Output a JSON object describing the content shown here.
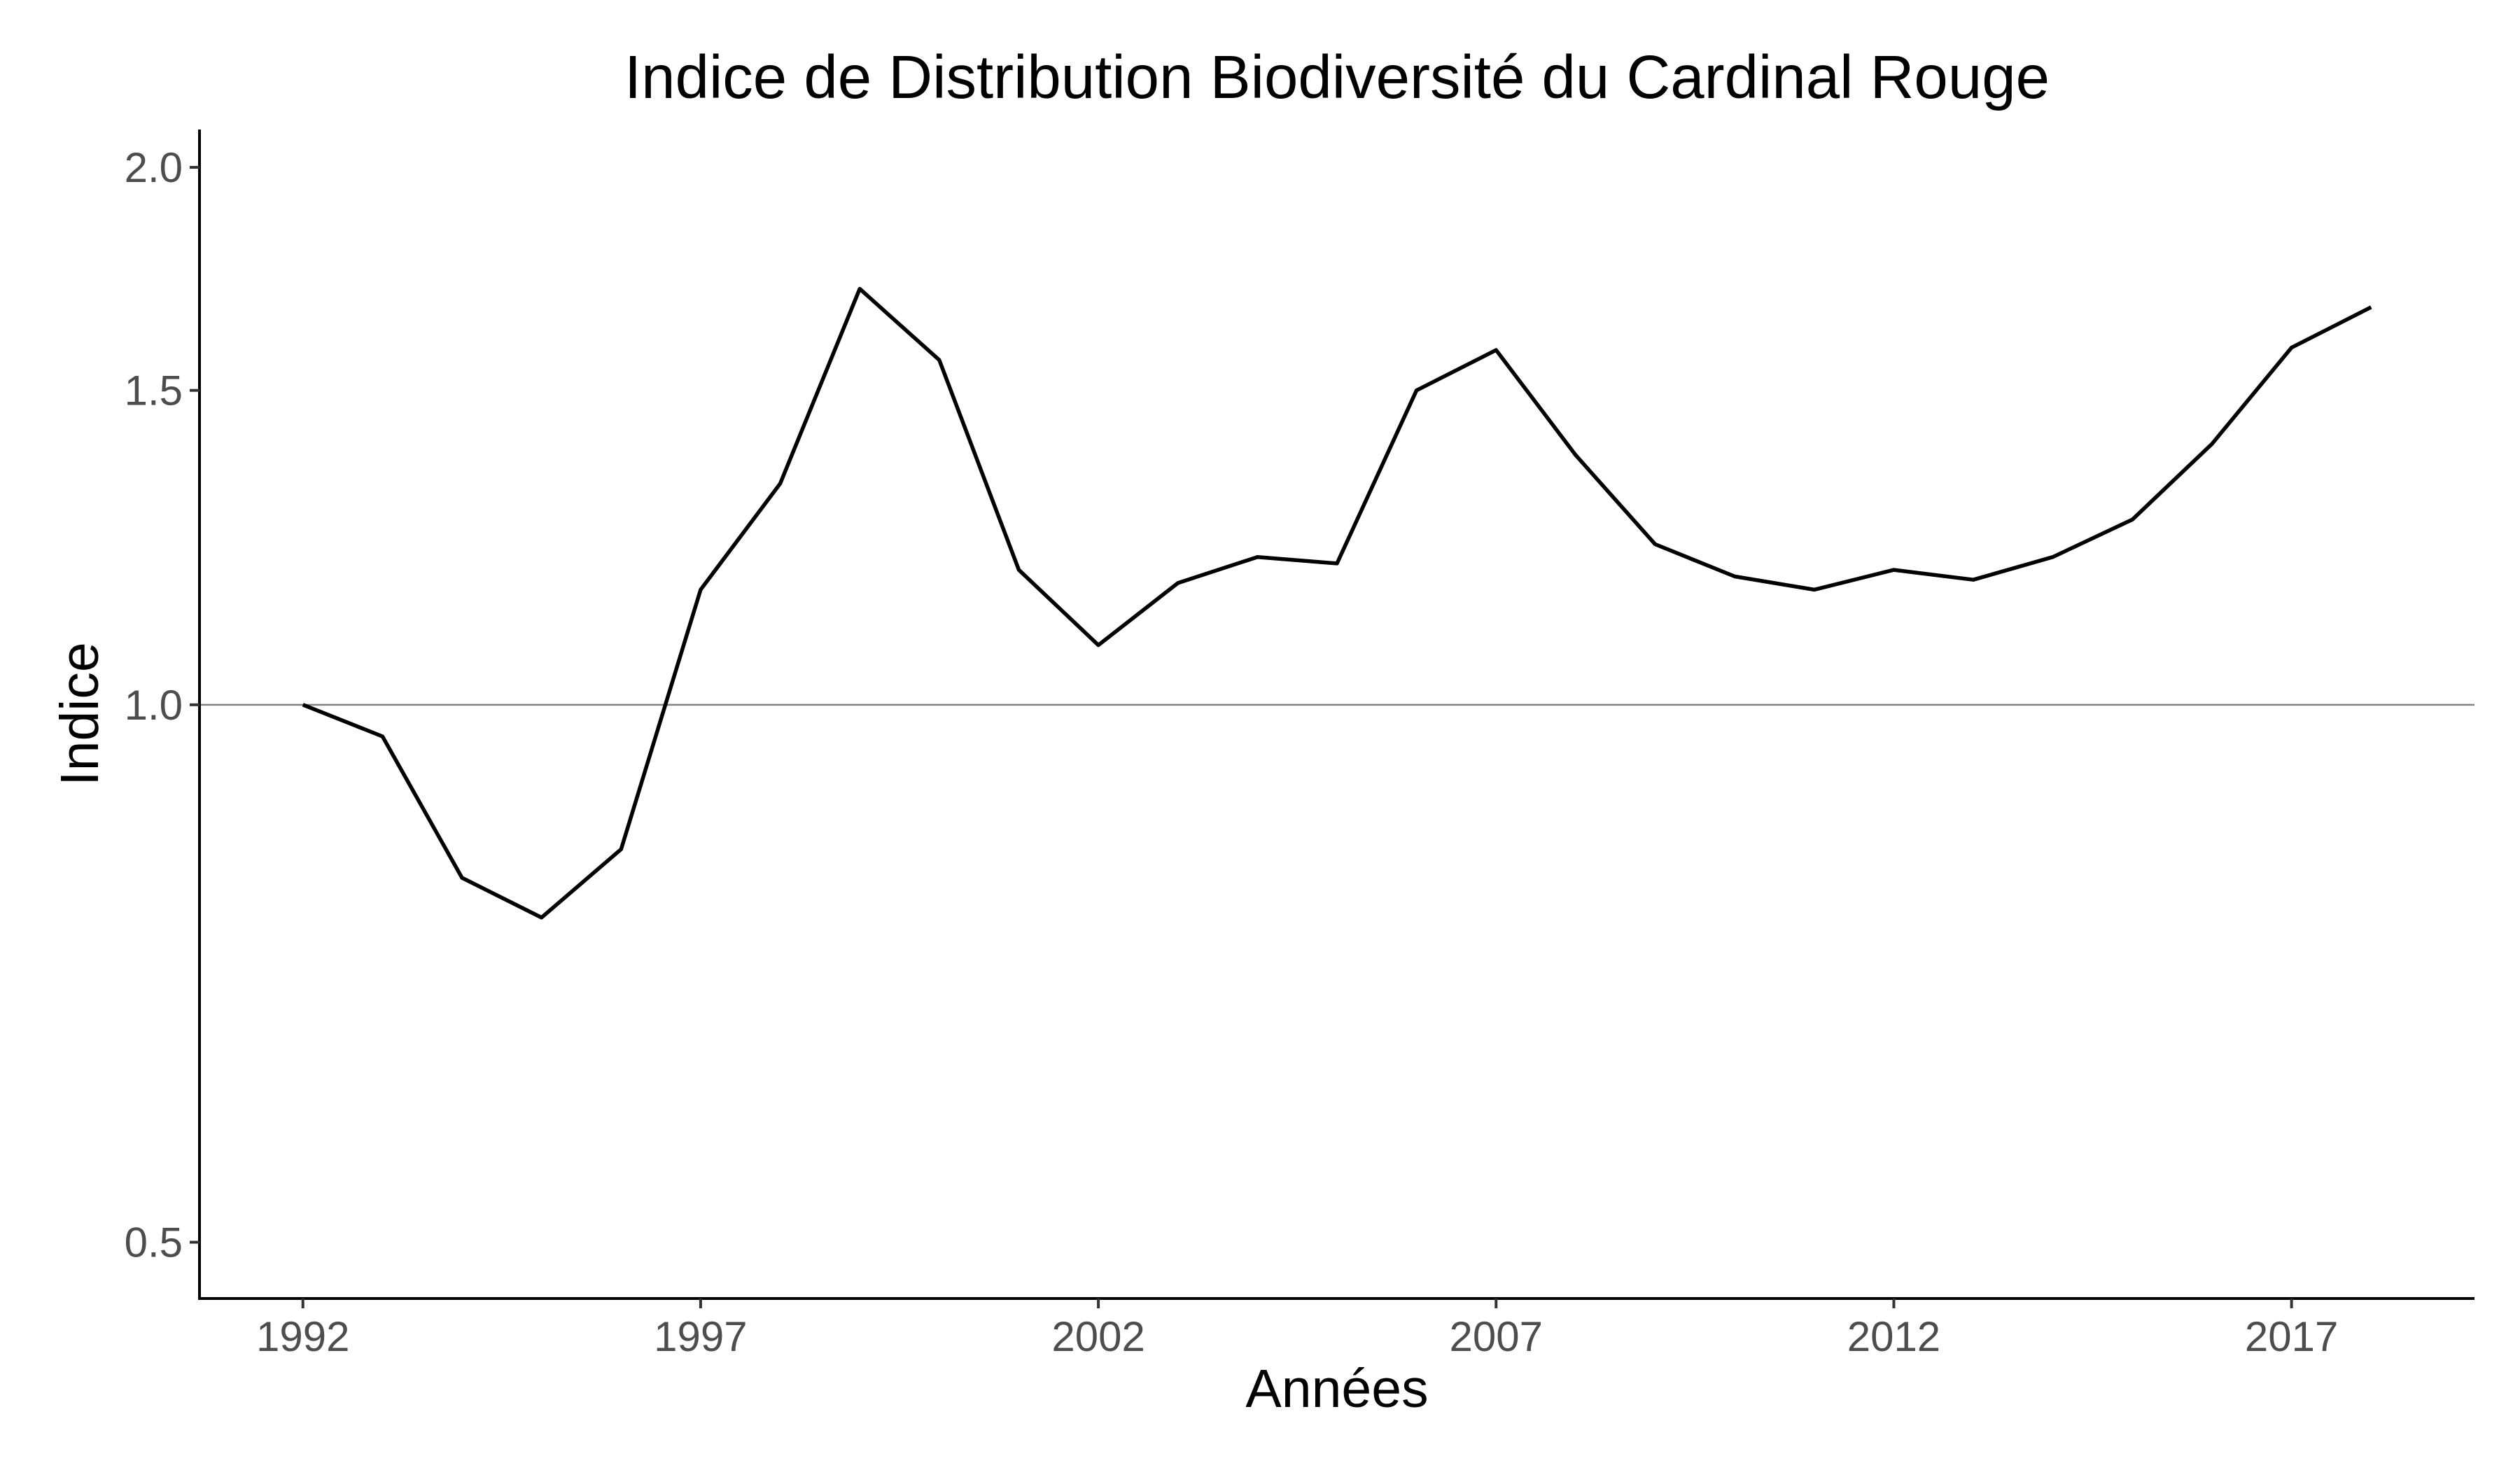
{
  "chart_data": {
    "type": "line",
    "title": "Indice de Distribution Biodiversité du Cardinal Rouge",
    "xlabel": "Années",
    "ylabel": "Indice",
    "y_scale": "log",
    "xlim": [
      1990.7,
      2019.3
    ],
    "ylim": [
      0.465,
      2.1
    ],
    "x_ticks": [
      1992,
      1997,
      2002,
      2007,
      2012,
      2017
    ],
    "y_ticks": [
      0.5,
      1.0,
      1.5,
      2.0
    ],
    "y_tick_labels": [
      "0.5",
      "1.0",
      "1.5",
      "2.0"
    ],
    "reference_line": 1.0,
    "grid": false,
    "legend": "none",
    "line_color": "#000000",
    "reference_color": "#808080",
    "x": [
      1992,
      1993,
      1994,
      1995,
      1996,
      1997,
      1998,
      1999,
      2000,
      2001,
      2002,
      2003,
      2004,
      2005,
      2006,
      2007,
      2008,
      2009,
      2010,
      2011,
      2012,
      2013,
      2014,
      2015,
      2016,
      2017,
      2018
    ],
    "y": [
      1.0,
      0.96,
      0.8,
      0.76,
      0.83,
      1.16,
      1.33,
      1.71,
      1.56,
      1.19,
      1.08,
      1.17,
      1.21,
      1.2,
      1.5,
      1.58,
      1.38,
      1.23,
      1.18,
      1.16,
      1.19,
      1.175,
      1.21,
      1.27,
      1.4,
      1.585,
      1.67
    ]
  }
}
